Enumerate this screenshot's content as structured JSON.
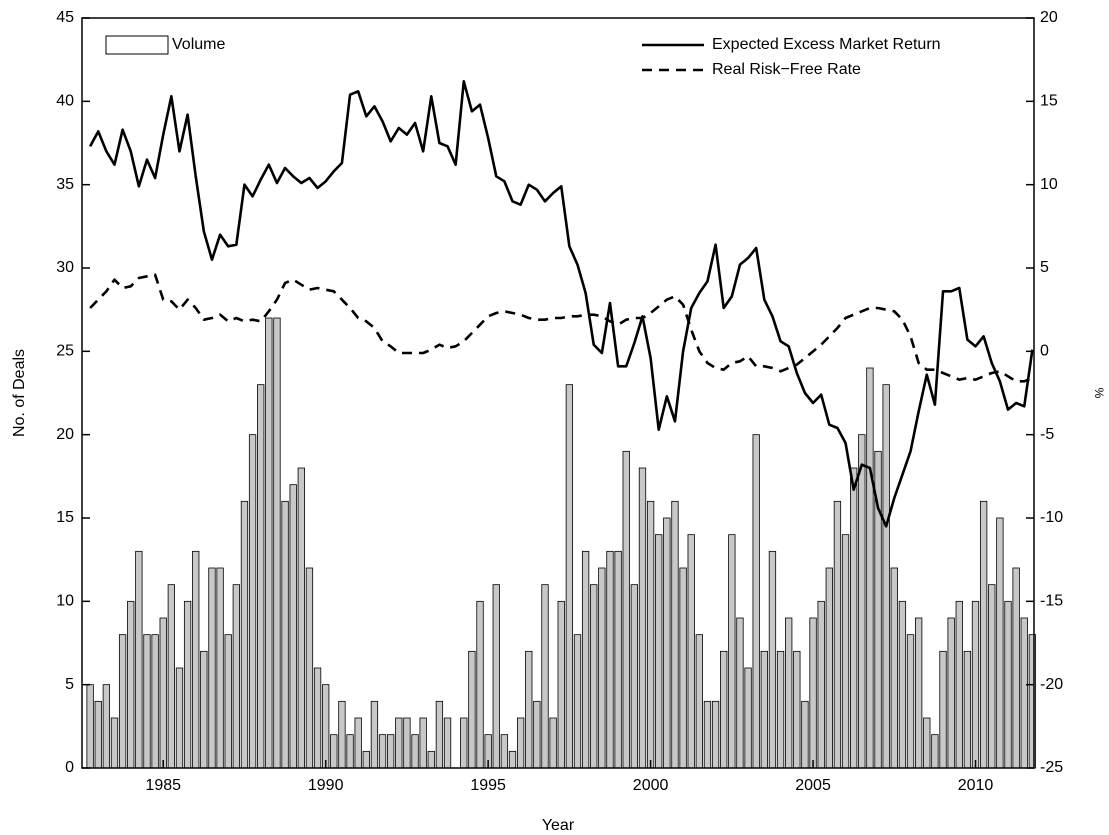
{
  "chart_data": {
    "type": "combo",
    "x_label": "Year",
    "y_label": "No. of Deals",
    "y2_label": "%",
    "xlim": [
      1982.5,
      2011.8
    ],
    "xticks": [
      1985,
      1990,
      1995,
      2000,
      2005,
      2010
    ],
    "ylim": [
      0,
      45
    ],
    "yticks": [
      0,
      5,
      10,
      15,
      20,
      25,
      30,
      35,
      40,
      45
    ],
    "y2lim": [
      -25,
      20
    ],
    "y2ticks": [
      -25,
      -20,
      -15,
      -10,
      -5,
      0,
      5,
      10,
      15,
      20
    ],
    "x": [
      1982.75,
      1983,
      1983.25,
      1983.5,
      1983.75,
      1984,
      1984.25,
      1984.5,
      1984.75,
      1985,
      1985.25,
      1985.5,
      1985.75,
      1986,
      1986.25,
      1986.5,
      1986.75,
      1987,
      1987.25,
      1987.5,
      1987.75,
      1988,
      1988.25,
      1988.5,
      1988.75,
      1989,
      1989.25,
      1989.5,
      1989.75,
      1990,
      1990.25,
      1990.5,
      1990.75,
      1991,
      1991.25,
      1991.5,
      1991.75,
      1992,
      1992.25,
      1992.5,
      1992.75,
      1993,
      1993.25,
      1993.5,
      1993.75,
      1994,
      1994.25,
      1994.5,
      1994.75,
      1995,
      1995.25,
      1995.5,
      1995.75,
      1996,
      1996.25,
      1996.5,
      1996.75,
      1997,
      1997.25,
      1997.5,
      1997.75,
      1998,
      1998.25,
      1998.5,
      1998.75,
      1999,
      1999.25,
      1999.5,
      1999.75,
      2000,
      2000.25,
      2000.5,
      2000.75,
      2001,
      2001.25,
      2001.5,
      2001.75,
      2002,
      2002.25,
      2002.5,
      2002.75,
      2003,
      2003.25,
      2003.5,
      2003.75,
      2004,
      2004.25,
      2004.5,
      2004.75,
      2005,
      2005.25,
      2005.5,
      2005.75,
      2006,
      2006.25,
      2006.5,
      2006.75,
      2007,
      2007.25,
      2007.5,
      2007.75,
      2008,
      2008.25,
      2008.5,
      2008.75,
      2009,
      2009.25,
      2009.5,
      2009.75,
      2010,
      2010.25,
      2010.5,
      2010.75,
      2011,
      2011.25,
      2011.5,
      2011.75
    ],
    "series": [
      {
        "name": "Volume",
        "type": "bar",
        "color": "#c8c8c8",
        "values": [
          5,
          4,
          5,
          3,
          8,
          10,
          13,
          8,
          8,
          9,
          11,
          6,
          10,
          13,
          7,
          12,
          12,
          8,
          11,
          16,
          20,
          23,
          27,
          27,
          16,
          17,
          18,
          12,
          6,
          5,
          2,
          4,
          2,
          3,
          1,
          4,
          2,
          2,
          3,
          3,
          2,
          3,
          1,
          4,
          3,
          0,
          3,
          7,
          10,
          2,
          11,
          2,
          1,
          3,
          7,
          4,
          11,
          3,
          10,
          23,
          8,
          13,
          11,
          12,
          13,
          13,
          19,
          11,
          18,
          16,
          14,
          15,
          16,
          12,
          14,
          8,
          4,
          4,
          7,
          14,
          9,
          6,
          20,
          7,
          13,
          7,
          9,
          7,
          4,
          9,
          10,
          12,
          16,
          14,
          18,
          20,
          24,
          19,
          23,
          12,
          10,
          8,
          9,
          3,
          2,
          7,
          9,
          10,
          7,
          10,
          16,
          11,
          15,
          10,
          12,
          9,
          8
        ]
      },
      {
        "name": "Expected Excess Market Return",
        "type": "line",
        "axis": "y2",
        "color": "#000000",
        "line_style": "solid",
        "values": [
          12.3,
          13.2,
          12.0,
          11.2,
          13.3,
          12.0,
          9.9,
          11.5,
          10.4,
          13.0,
          15.3,
          12.0,
          14.2,
          10.5,
          7.2,
          5.5,
          7.0,
          6.3,
          6.4,
          10.0,
          9.3,
          10.3,
          11.2,
          10.1,
          11.0,
          10.5,
          10.1,
          10.4,
          9.8,
          10.2,
          10.8,
          11.3,
          15.4,
          15.6,
          14.1,
          14.7,
          13.8,
          12.6,
          13.4,
          13.0,
          13.7,
          12.0,
          15.3,
          12.5,
          12.3,
          11.2,
          16.2,
          14.4,
          14.8,
          12.8,
          10.5,
          10.2,
          9.0,
          8.8,
          10.0,
          9.7,
          9.0,
          9.5,
          9.9,
          6.3,
          5.2,
          3.5,
          0.4,
          -0.1,
          2.9,
          -0.9,
          -0.9,
          0.5,
          2.1,
          -0.4,
          -4.7,
          -2.7,
          -4.2,
          0.0,
          2.6,
          3.5,
          4.2,
          6.4,
          2.6,
          3.3,
          5.2,
          5.6,
          6.2,
          3.1,
          2.1,
          0.6,
          0.3,
          -1.3,
          -2.5,
          -3.1,
          -2.6,
          -4.4,
          -4.6,
          -5.5,
          -8.3,
          -6.8,
          -7.0,
          -9.4,
          -10.5,
          -8.8,
          -7.4,
          -6.0,
          -3.6,
          -1.4,
          -3.2,
          3.6,
          3.6,
          3.8,
          0.7,
          0.3,
          0.9,
          -0.7,
          -1.8,
          -3.5,
          -3.1,
          -3.3,
          0.1
        ]
      },
      {
        "name": "Real Risk−Free Rate",
        "type": "line",
        "axis": "y2",
        "color": "#000000",
        "line_style": "dashed",
        "values": [
          2.6,
          3.1,
          3.6,
          4.3,
          3.8,
          3.9,
          4.4,
          4.5,
          4.6,
          3.1,
          3.0,
          2.5,
          3.1,
          2.6,
          1.9,
          2.0,
          2.2,
          1.8,
          2.0,
          1.8,
          1.9,
          1.8,
          2.4,
          3.1,
          4.1,
          4.3,
          4.0,
          3.7,
          3.8,
          3.7,
          3.6,
          3.1,
          2.6,
          2.0,
          1.8,
          1.4,
          0.6,
          0.3,
          -0.1,
          -0.1,
          -0.1,
          -0.1,
          0.1,
          0.4,
          0.2,
          0.3,
          0.6,
          1.1,
          1.6,
          2.1,
          2.3,
          2.4,
          2.3,
          2.2,
          2.0,
          1.9,
          1.9,
          2.0,
          2.0,
          2.1,
          2.1,
          2.2,
          2.2,
          2.1,
          1.8,
          1.6,
          1.9,
          2.0,
          2.0,
          2.3,
          2.7,
          3.1,
          3.3,
          2.8,
          1.3,
          0.0,
          -0.7,
          -1.0,
          -1.1,
          -0.7,
          -0.6,
          -0.3,
          -0.9,
          -0.9,
          -1.0,
          -1.2,
          -1.0,
          -0.8,
          -0.4,
          0.0,
          0.4,
          0.9,
          1.4,
          2.0,
          2.2,
          2.4,
          2.6,
          2.6,
          2.5,
          2.4,
          1.9,
          0.9,
          -0.7,
          -1.1,
          -1.1,
          -1.3,
          -1.5,
          -1.7,
          -1.6,
          -1.7,
          -1.5,
          -1.3,
          -1.2,
          -1.5,
          -1.8,
          -1.8,
          -1.6
        ]
      }
    ]
  }
}
